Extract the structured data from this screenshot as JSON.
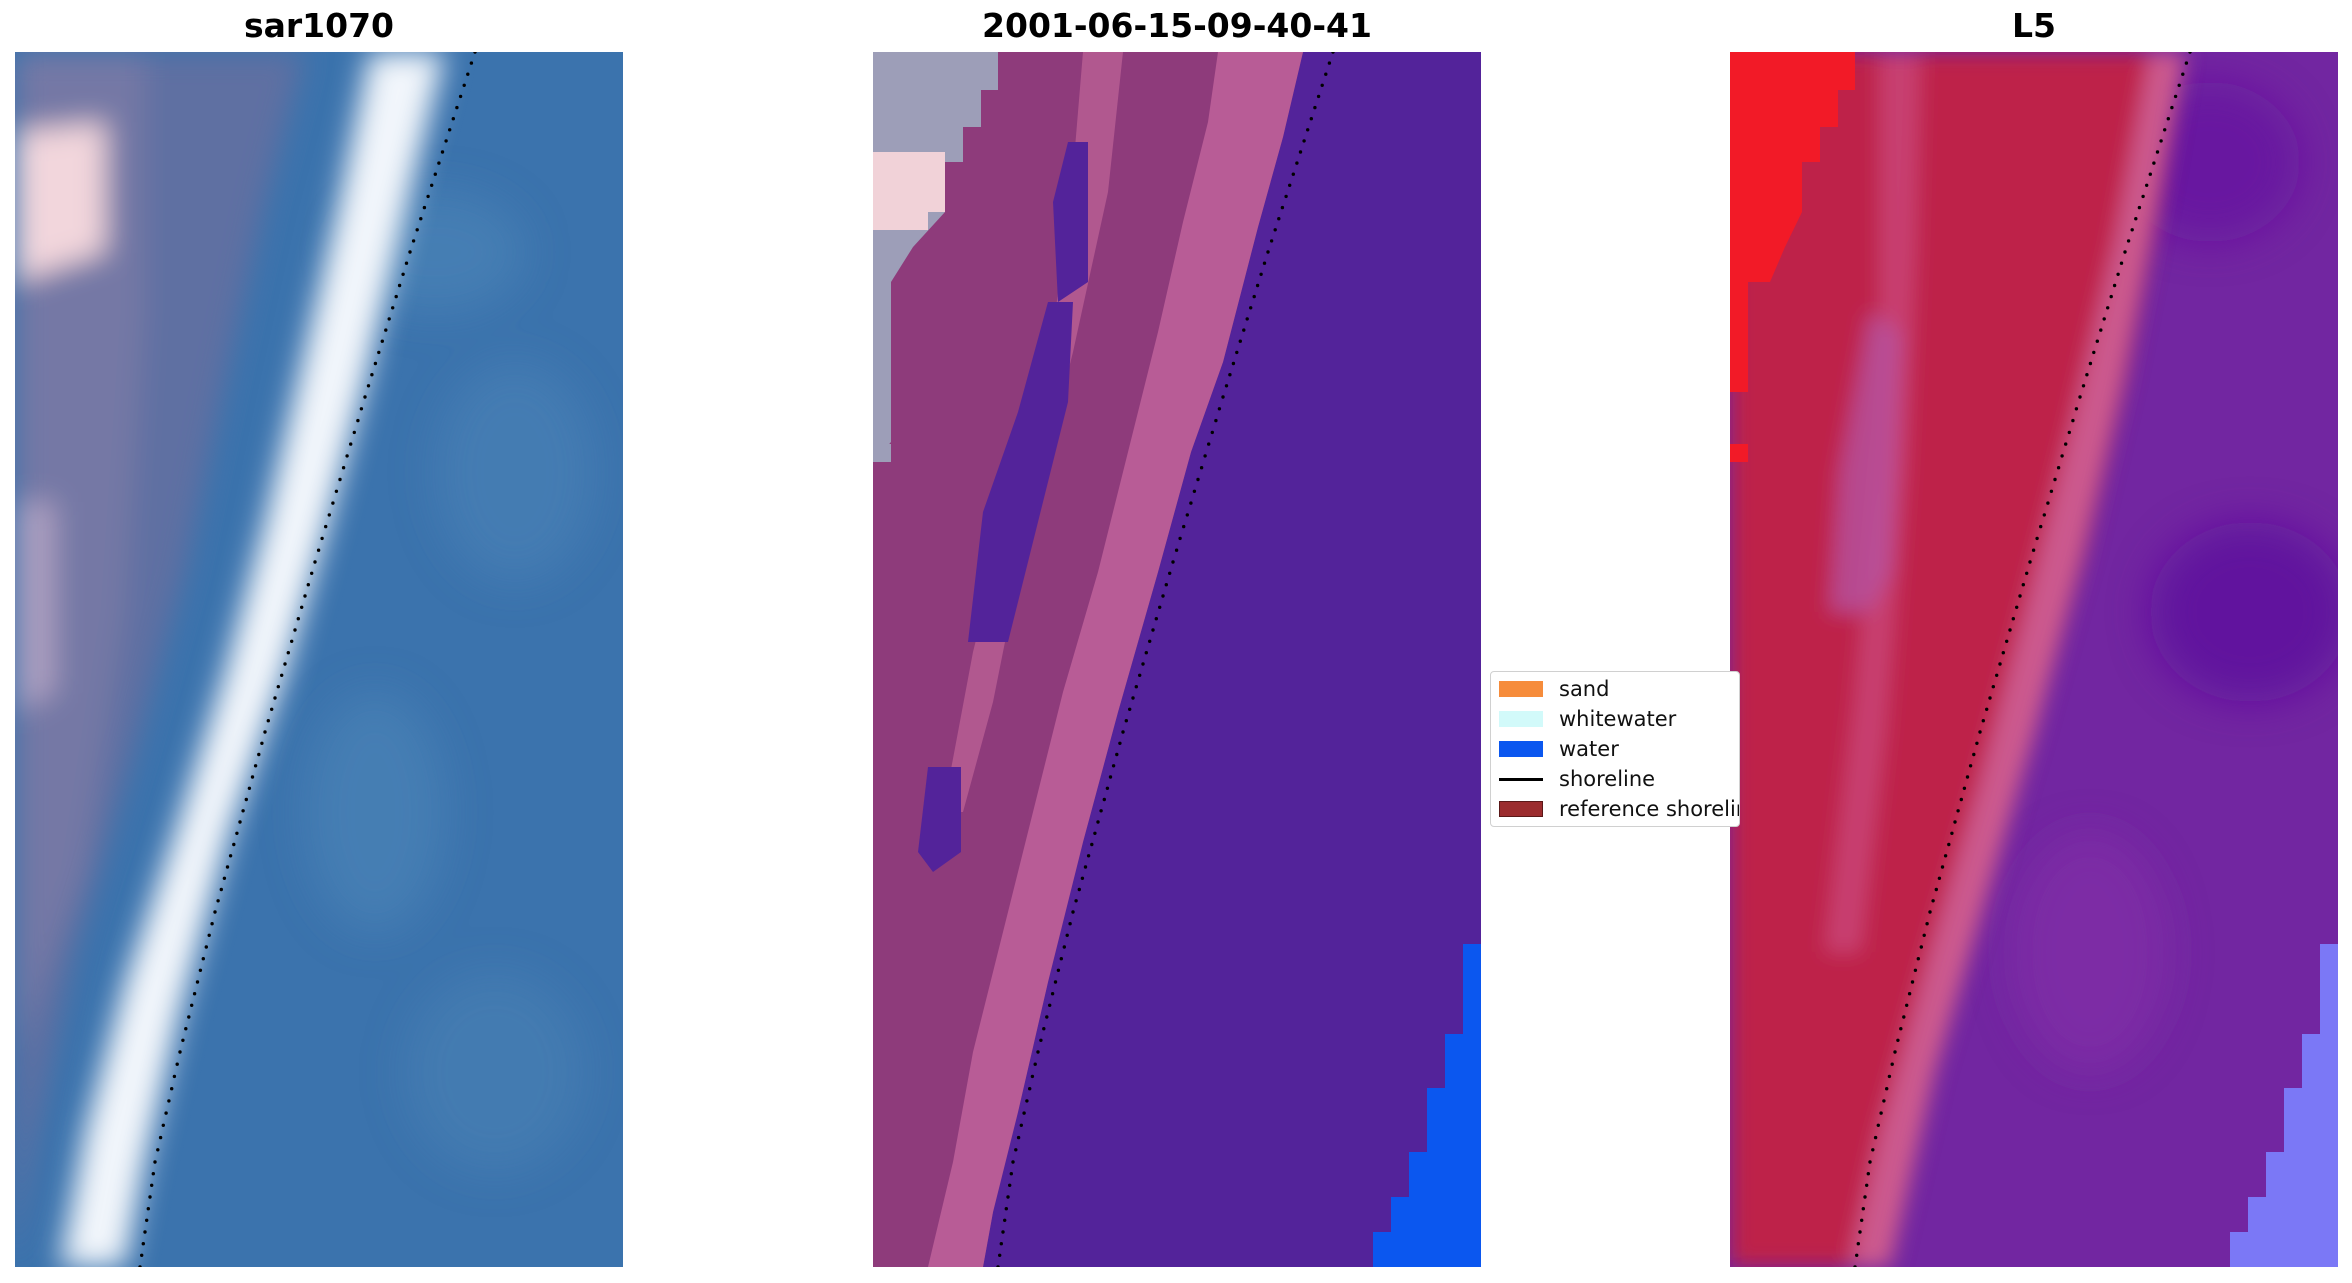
{
  "panels": [
    {
      "id": "rgb",
      "title": "sar1070"
    },
    {
      "id": "classification",
      "title": "2001-06-15-09-40-41"
    },
    {
      "id": "index",
      "title": "L5"
    }
  ],
  "legend": {
    "items": [
      {
        "label": "sand",
        "color": "#f68c3b",
        "kind": "patch"
      },
      {
        "label": "whitewater",
        "color": "#d2fafa",
        "kind": "patch"
      },
      {
        "label": "water",
        "color": "#0b57ef",
        "kind": "patch"
      },
      {
        "label": "shoreline",
        "color": "#000000",
        "kind": "line"
      },
      {
        "label": "reference shoreline",
        "color": "#9b2c2e",
        "kind": "patch"
      }
    ]
  },
  "colors": {
    "rgb_water": "#3b73ad",
    "rgb_water_light": "#5d92bf",
    "rgb_land": "#5e6fa2",
    "rgb_surf": "#f2f6fb",
    "rgb_pink": "#f2d6dc",
    "class_background": "#53239a",
    "class_pink": "#b85c96",
    "class_magenta": "#8e3b7b",
    "class_grey": "#9d9eb8",
    "class_pale": "#f1d2d8",
    "class_water": "#0b57ef",
    "index_red": "#f21a27",
    "index_crimson": "#be2148",
    "index_pink": "#cc5a8e",
    "index_purple": "#7226a1",
    "index_lavender": "#7b78f6",
    "shoreline_dots": "#000000"
  }
}
